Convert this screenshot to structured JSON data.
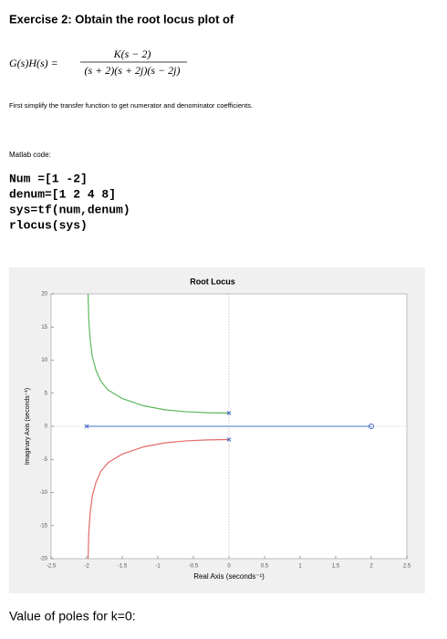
{
  "document": {
    "title": "Exercise 2: Obtain the root locus plot of",
    "equation": {
      "lhs": "G(s)H(s) =",
      "numerator": "K(s − 2)",
      "denominator": "(s + 2)(s + 2j)(s − 2j)"
    },
    "paragraph": "First simplify the transfer function to get numerator and denominator coefficients.",
    "code_label": "Matlab code:",
    "code": [
      "Num =[1 -2]",
      "denum=[1 2 4 8]",
      "sys=tf(num,denum)",
      "rlocus(sys)"
    ],
    "footer": "Value of poles for k=0:"
  },
  "chart_data": {
    "type": "line",
    "title": "Root Locus",
    "x_label": "Real Axis (seconds⁻¹)",
    "y_label": "Imaginary Axis (seconds⁻¹)",
    "xlim": [
      -2.5,
      2.5
    ],
    "xticks": [
      -2.5,
      -2,
      -1.5,
      -1,
      -0.5,
      0,
      0.5,
      1,
      1.5,
      2,
      2.5
    ],
    "ylim": [
      -20,
      20
    ],
    "yticks": [
      -20,
      -15,
      -10,
      -5,
      0,
      5,
      10,
      15,
      20
    ],
    "series": [
      {
        "color": "#5cb85c",
        "x": [
          0,
          -0.3,
          -0.6,
          -0.9,
          -1.2,
          -1.5,
          -1.7,
          -1.8,
          -1.87,
          -1.92,
          -1.95,
          -1.97,
          -1.98
        ],
        "y": [
          2,
          2.05,
          2.2,
          2.5,
          3.1,
          4.2,
          5.5,
          6.8,
          8.5,
          10.5,
          13,
          16,
          20
        ]
      },
      {
        "color": "#e26a6a",
        "x": [
          0,
          -0.3,
          -0.6,
          -0.9,
          -1.2,
          -1.5,
          -1.7,
          -1.8,
          -1.87,
          -1.92,
          -1.95,
          -1.97,
          -1.98
        ],
        "y": [
          -2,
          -2.05,
          -2.2,
          -2.5,
          -3.1,
          -4.2,
          -5.5,
          -6.8,
          -8.5,
          -10.5,
          -13,
          -16,
          -20
        ]
      },
      {
        "color": "#6a8fd8",
        "x": [
          -2,
          2
        ],
        "y": [
          0,
          0
        ]
      }
    ],
    "poles": {
      "x": [
        -2,
        0,
        0
      ],
      "y": [
        0,
        2,
        -2
      ]
    },
    "zeros": {
      "x": [
        2
      ],
      "y": [
        0
      ]
    }
  }
}
